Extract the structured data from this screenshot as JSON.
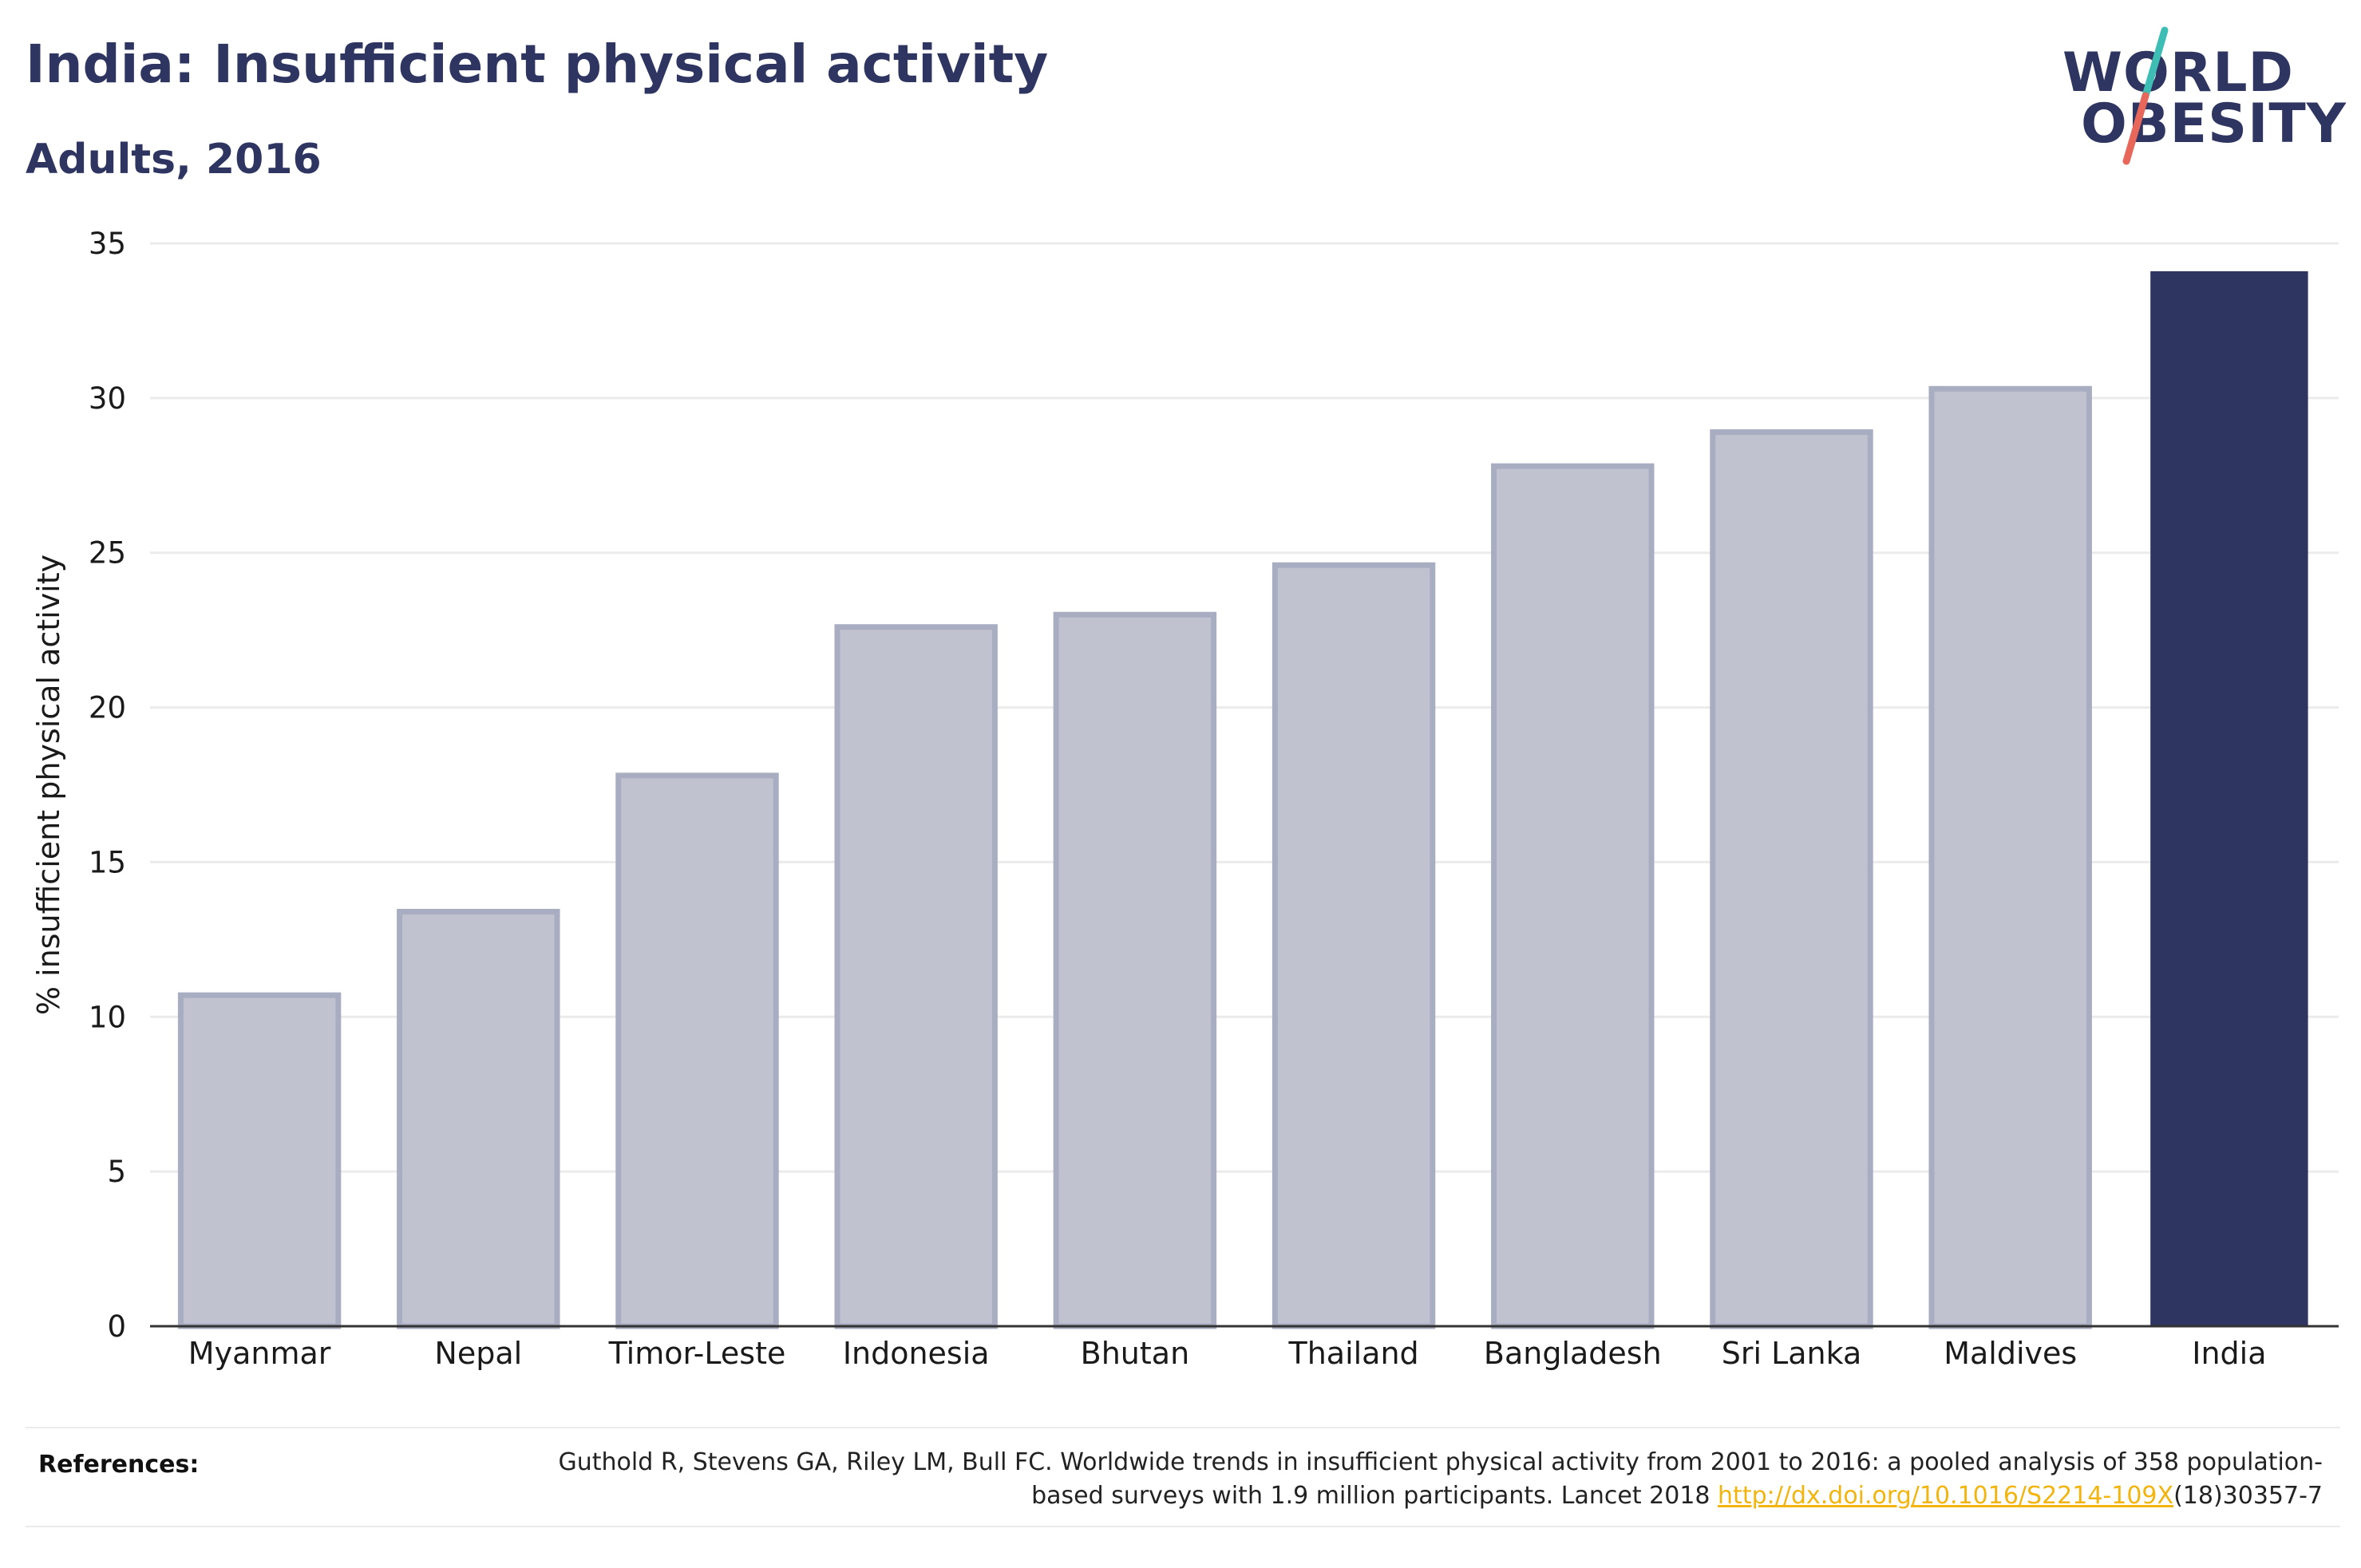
{
  "header": {
    "title": "India: Insufficient physical activity",
    "subtitle": "Adults, 2016"
  },
  "logo": {
    "line1": "WORLD",
    "line2": "OBESITY",
    "slash_colors": [
      "#3dbdb4",
      "#e8675b"
    ]
  },
  "chart_data": {
    "type": "bar",
    "title": "India: Insufficient physical activity",
    "subtitle": "Adults, 2016",
    "xlabel": "",
    "ylabel": "% insufficient physical activity",
    "ylim": [
      0,
      35
    ],
    "yticks": [
      0,
      5,
      10,
      15,
      20,
      25,
      30,
      35
    ],
    "grid": true,
    "categories": [
      "Myanmar",
      "Nepal",
      "Timor-Leste",
      "Indonesia",
      "Bhutan",
      "Thailand",
      "Bangladesh",
      "Sri Lanka",
      "Maldives",
      "India"
    ],
    "values": [
      10.7,
      13.4,
      17.8,
      22.6,
      23.0,
      24.6,
      27.8,
      28.9,
      30.3,
      34.1
    ],
    "highlight": "India",
    "colors": {
      "bar": "#c0c3cf",
      "bar_border": "#a8adc2",
      "highlight": "#2d3560",
      "grid": "#ebebeb",
      "axis": "#333333"
    }
  },
  "references": {
    "label": "References:",
    "text_before": "Guthold R, Stevens GA, Riley LM, Bull FC. Worldwide trends in insufficient physical activity from 2001 to 2016: a pooled analysis of 358 population-based surveys with 1.9 million participants. Lancet 2018 ",
    "link": "http://dx.doi.org/10.1016/S2214-109X",
    "text_after": "(18)30357-7"
  }
}
